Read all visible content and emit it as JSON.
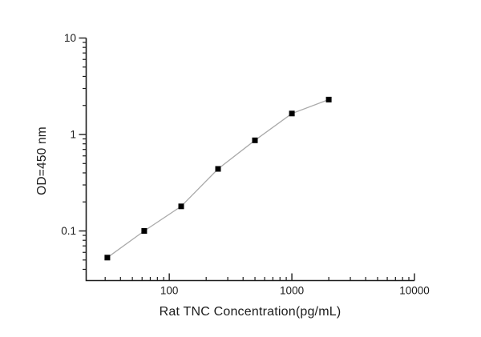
{
  "figure": {
    "background": "#ffffff"
  },
  "chart_data": {
    "type": "line",
    "description": "ELISA standard curve, log-log scatter with connecting line",
    "title": "",
    "xlabel": "Rat TNC Concentration(pg/mL)",
    "ylabel": "OD=450 nm",
    "x_scale": "log",
    "y_scale": "log",
    "x": [
      31.25,
      62.5,
      125,
      250,
      500,
      1000,
      2000
    ],
    "y": [
      0.053,
      0.1,
      0.18,
      0.44,
      0.87,
      1.65,
      2.3
    ],
    "xlim": [
      21,
      10000
    ],
    "ylim": [
      0.0306,
      10
    ],
    "x_major_ticks": [
      100,
      1000,
      10000
    ],
    "x_tick_labels": [
      "100",
      "1000",
      "10000"
    ],
    "y_major_ticks": [
      0.1,
      1,
      10
    ],
    "y_tick_labels": [
      "0.1",
      "1",
      "10"
    ],
    "grid": false,
    "legend": "none",
    "marker": {
      "shape": "square",
      "size": 7,
      "color": "#000000"
    },
    "line": {
      "color": "#aaaaaa",
      "width": 1.3
    },
    "axis_color": "#1c1c1c",
    "tick_label_color": "#1c1c1c"
  }
}
